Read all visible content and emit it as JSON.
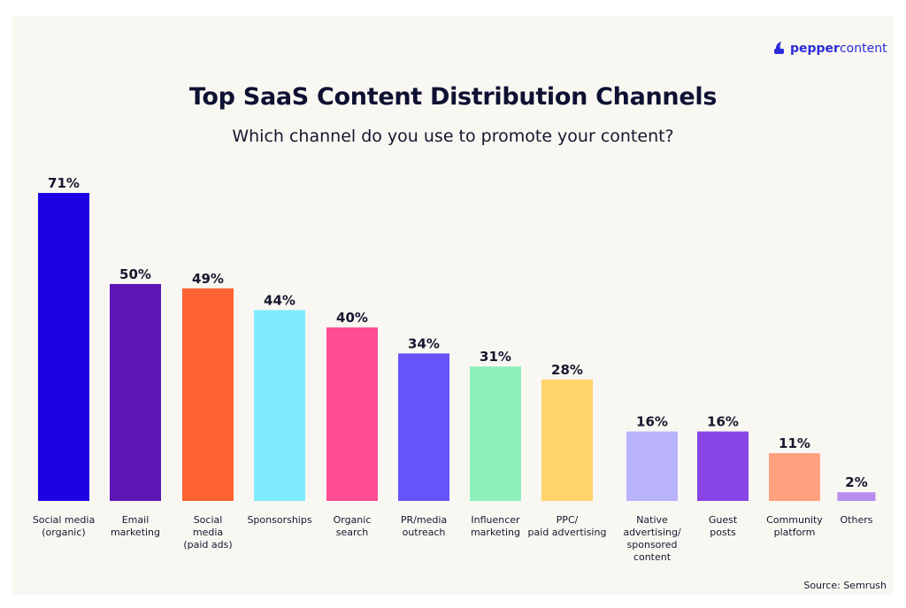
{
  "brand": {
    "logo_prefix": "pepper",
    "logo_suffix": "content",
    "logo_icon": "pepper-icon",
    "color": "#2a2bd8"
  },
  "title": "Top SaaS Content Distribution Channels",
  "subtitle": "Which channel do you use to promote your content?",
  "source": "Source: Semrush",
  "chart_data": {
    "type": "bar",
    "title": "Top SaaS Content Distribution Channels",
    "subtitle": "Which channel do you use to promote your content?",
    "unit": "%",
    "ylim": [
      0,
      71
    ],
    "grid": false,
    "categories": [
      [
        "Social media",
        "(organic)"
      ],
      [
        "Email",
        "marketing"
      ],
      [
        "Social",
        "media",
        "(paid ads)"
      ],
      [
        "Sponsorships"
      ],
      [
        "Organic",
        "search"
      ],
      [
        "PR/media",
        "outreach"
      ],
      [
        "Influencer",
        "marketing"
      ],
      [
        "PPC/",
        "paid advertising"
      ],
      [
        "Native",
        "advertising/",
        "sponsored",
        "content"
      ],
      [
        "Guest",
        "posts"
      ],
      [
        "Community",
        "platform"
      ],
      [
        "Others"
      ]
    ],
    "values": [
      71,
      50,
      49,
      44,
      40,
      34,
      31,
      28,
      16,
      16,
      11,
      2
    ],
    "labels": [
      "71%",
      "50%",
      "49%",
      "44%",
      "40%",
      "34%",
      "31%",
      "28%",
      "16%",
      "16%",
      "11%",
      "2%"
    ],
    "colors": [
      "#1d03e3",
      "#5b16b5",
      "#ff6232",
      "#7fecfd",
      "#ff4c94",
      "#6653fb",
      "#8ff0be",
      "#ffd46a",
      "#b9b3fd",
      "#8844e5",
      "#ffa07f",
      "#b68eef"
    ]
  }
}
